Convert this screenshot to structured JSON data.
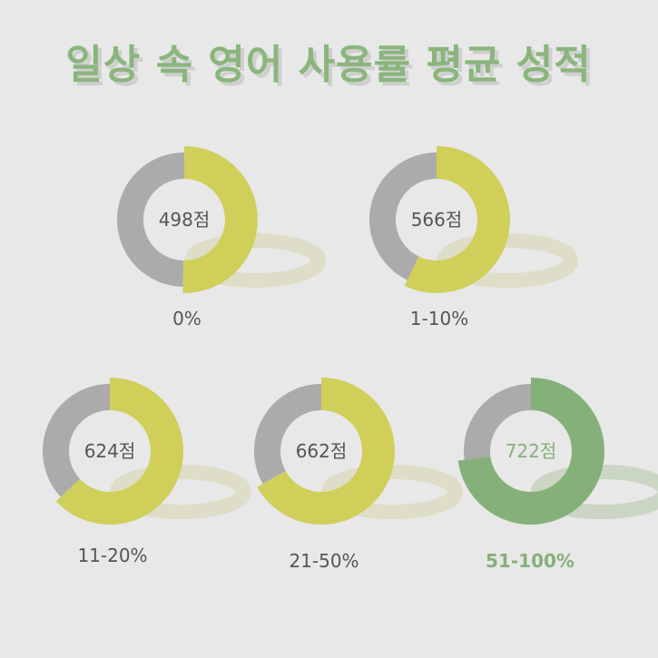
{
  "title": "일상 속 영어 사용률 평균 성적",
  "colors": {
    "background": "#e8e8e8",
    "track": "#ababab",
    "fill": "#cfcf5a",
    "highlight": "#86b07a",
    "text": "#555555",
    "title": "#8ab57c",
    "shadow": "#dcdcc4"
  },
  "chart_data": {
    "type": "pie",
    "title": "일상 속 영어 사용률 평균 성적",
    "score_range": [
      0,
      990
    ],
    "categories": [
      "0%",
      "1-10%",
      "11-20%",
      "21-50%",
      "51-100%"
    ],
    "scores": [
      498,
      566,
      624,
      662,
      722
    ],
    "score_labels": [
      "498점",
      "566점",
      "624점",
      "662점",
      "722점"
    ],
    "highlight_index": 4
  }
}
